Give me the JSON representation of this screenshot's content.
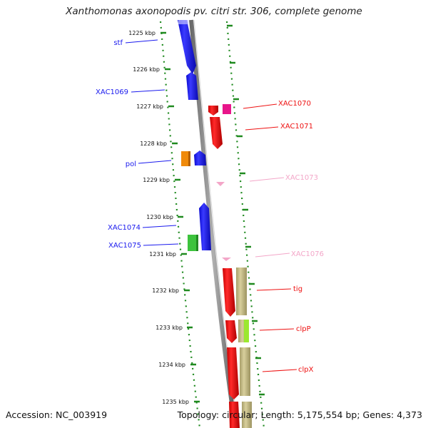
{
  "title": "Xanthomonas axonopodis pv. citri str. 306, complete genome",
  "footer": {
    "accession": "Accession: NC_003919",
    "topology": "Topology: circular; Length: 5,175,554 bp; Genes: 4,373"
  },
  "colors": {
    "forward_gene": "#1a1aee",
    "reverse_gene": "#ee1111",
    "tick": "#1f8a1f",
    "backbone": "#8a8a8a",
    "faded": "#f3a6c8",
    "magenta": "#e8158a",
    "orange": "#f08a0a",
    "green": "#3dc33d",
    "khaki": "#c9c08c",
    "lime": "#9be830"
  },
  "ruler_labels": [
    "1225 kbp",
    "1226 kbp",
    "1227 kbp",
    "1228 kbp",
    "1229 kbp",
    "1230 kbp",
    "1231 kbp",
    "1232 kbp",
    "1233 kbp",
    "1234 kbp",
    "1235 kbp"
  ],
  "left_labels": [
    {
      "text": "stf",
      "color": "blue"
    },
    {
      "text": "XAC1069",
      "color": "blue"
    },
    {
      "text": "pol",
      "color": "blue"
    },
    {
      "text": "XAC1074",
      "color": "blue"
    },
    {
      "text": "XAC1075",
      "color": "blue"
    }
  ],
  "right_labels": [
    {
      "text": "XAC1070",
      "color": "red"
    },
    {
      "text": "XAC1071",
      "color": "red"
    },
    {
      "text": "XAC1073",
      "color": "pink"
    },
    {
      "text": "XAC1076",
      "color": "pink"
    },
    {
      "text": "tig",
      "color": "red"
    },
    {
      "text": "clpP",
      "color": "red"
    },
    {
      "text": "clpX",
      "color": "red"
    }
  ]
}
